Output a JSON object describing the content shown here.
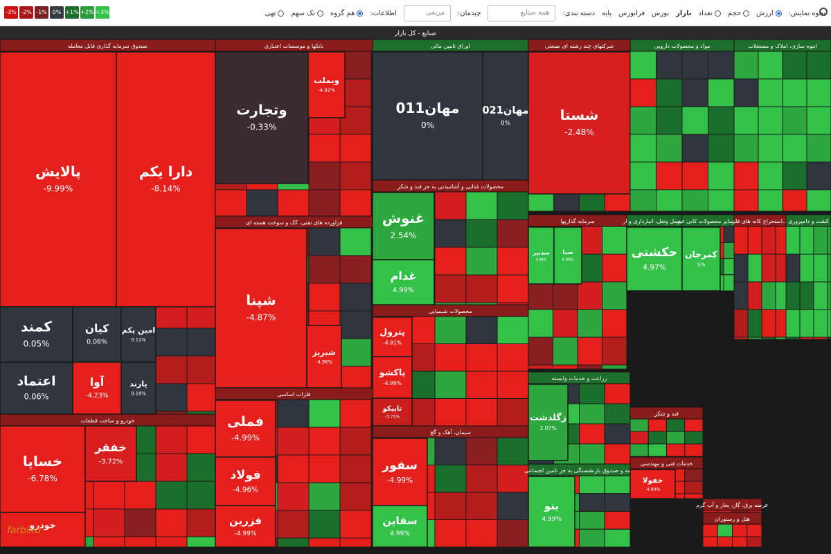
{
  "toolbar": {
    "legend": [
      {
        "label": "-3%",
        "color": "#d01010"
      },
      {
        "label": "-2%",
        "color": "#a81818"
      },
      {
        "label": "-1%",
        "color": "#7a2020"
      },
      {
        "label": "0%",
        "color": "#333a40"
      },
      {
        "label": "+1%",
        "color": "#1c6e2c"
      },
      {
        "label": "+2%",
        "color": "#2a9a3a"
      },
      {
        "label": "+3%",
        "color": "#33c14a"
      }
    ],
    "display_label": "نحوه نمایش:",
    "display_options": [
      "ارزش",
      "حجم",
      "تعداد"
    ],
    "markets": [
      "بازار",
      "بورس",
      "فرابورس",
      "پایه"
    ],
    "category_label": "دسته بندی:",
    "category_value": "همه صنایع",
    "layout_label": "چیدمان:",
    "layout_value": "مربعی",
    "info_label": "اطلاعات:",
    "info_options": [
      "هم گروه",
      "تک سهم",
      "تهی"
    ]
  },
  "title": "صنایع - کل بازار",
  "watermark": "farbixo",
  "sectors": [
    {
      "title": "صندوق سرمایه گذاری قابل معامله",
      "header_color": "#8a1c1c",
      "tiles": [
        {
          "name": "پالایش",
          "change": "-9.99%",
          "color": "#e5201c"
        },
        {
          "name": "دارا یکم",
          "change": "-8.14%",
          "color": "#e5201c"
        },
        {
          "name": "کمند",
          "change": "0.05%",
          "color": "#2f363d"
        },
        {
          "name": "کیان",
          "change": "0.06%",
          "color": "#2f363d"
        },
        {
          "name": "امین یکم",
          "change": "0.11%",
          "color": "#2f363d"
        },
        {
          "name": "اعتماد",
          "change": "0.06%",
          "color": "#2f363d"
        },
        {
          "name": "آوا",
          "change": "-4.23%",
          "color": "#e5201c"
        },
        {
          "name": "یارند",
          "change": "0.16%",
          "color": "#2f363d"
        }
      ]
    },
    {
      "title": "خودرو و ساخت قطعات",
      "header_color": "#8a1c1c",
      "tiles": [
        {
          "name": "خساپا",
          "change": "-6.78%",
          "color": "#e5201c"
        },
        {
          "name": "خفقر",
          "change": "-3.72%",
          "color": "#d81f1f"
        },
        {
          "name": "خودرو",
          "change": "",
          "color": "#e5201c"
        }
      ]
    },
    {
      "title": "بانکها و موسسات اعتباری",
      "header_color": "#8a1c1c",
      "tiles": [
        {
          "name": "وتجارت",
          "change": "-0.33%",
          "color": "#3a2c30"
        },
        {
          "name": "وبملت",
          "change": "-4.92%",
          "color": "#e5201c"
        }
      ]
    },
    {
      "title": "فراورده های نفتی، کک و سوخت هسته ای",
      "header_color": "#8a1c1c",
      "tiles": [
        {
          "name": "شپنا",
          "change": "-4.87%",
          "color": "#e5201c"
        },
        {
          "name": "شبریز",
          "change": "-4.96%",
          "color": "#e5201c"
        }
      ]
    },
    {
      "title": "فلزات اساسی",
      "header_color": "#8a1c1c",
      "tiles": [
        {
          "name": "فملی",
          "change": "-4.99%",
          "color": "#e5201c"
        },
        {
          "name": "فولاد",
          "change": "-4.96%",
          "color": "#e5201c"
        },
        {
          "name": "فزرین",
          "change": "-4.99%",
          "color": "#e5201c"
        }
      ]
    },
    {
      "title": "اوراق تامین مالی",
      "header_color": "#1e6e2c",
      "tiles": [
        {
          "name": "مهان011",
          "change": "0%",
          "color": "#2f363d"
        },
        {
          "name": "مهان021",
          "change": "0%",
          "color": "#2f363d"
        }
      ]
    },
    {
      "title": "محصولات غذایی و آشامیدنی به جز قند و شکر",
      "header_color": "#8a1c1c",
      "tiles": [
        {
          "name": "غنوش",
          "change": "2.54%",
          "color": "#2ea83e"
        },
        {
          "name": "غدام",
          "change": "4.99%",
          "color": "#33c14a"
        }
      ]
    },
    {
      "title": "محصولات شیمیایی",
      "header_color": "#8a1c1c",
      "tiles": [
        {
          "name": "پترول",
          "change": "-4.91%",
          "color": "#e5201c"
        },
        {
          "name": "پاکشو",
          "change": "-4.99%",
          "color": "#e5201c"
        },
        {
          "name": "تاپیکو",
          "change": "-3.71%",
          "color": "#c81e1e"
        }
      ]
    },
    {
      "title": "سیمان، آهک و گچ",
      "header_color": "#8a1c1c",
      "tiles": [
        {
          "name": "سفور",
          "change": "-4.99%",
          "color": "#e5201c"
        },
        {
          "name": "سفاین",
          "change": "4.99%",
          "color": "#33c14a"
        }
      ]
    },
    {
      "title": "شرکتهای چند رشته ای صنعتی",
      "header_color": "#8a1c1c",
      "tiles": [
        {
          "name": "شستا",
          "change": "-2.48%",
          "color": "#d81f1f"
        }
      ]
    },
    {
      "title": "مواد و محصولات دارویی",
      "header_color": "#1e6e2c",
      "tiles": []
    },
    {
      "title": "انبوه سازی، املاک و مستغلات",
      "header_color": "#1e6e2c",
      "tiles": []
    },
    {
      "title": "سرمایه گذاریها",
      "header_color": "#8a1c1c",
      "tiles": [
        {
          "name": "سدبیر",
          "change": "4.99%",
          "color": "#33c14a"
        },
        {
          "name": "صبا",
          "change": "4.99%",
          "color": "#33c14a"
        }
      ]
    },
    {
      "title": "حمل ونقل، انبارداری و ار...",
      "header_color": "#1e6e2c",
      "tiles": [
        {
          "name": "حکشتی",
          "change": "4.97%",
          "color": "#33c14a"
        }
      ]
    },
    {
      "title": "سایر محصولات کانی غیر...",
      "header_color": "#1e6e2c",
      "tiles": [
        {
          "name": "کمرجان",
          "change": "5%",
          "color": "#33c14a"
        }
      ]
    },
    {
      "title": "استخراج کانه های فلز...",
      "header_color": "#8a1c1c",
      "tiles": []
    },
    {
      "title": "کشت و دامپروری",
      "header_color": "#1e6e2c",
      "tiles": []
    },
    {
      "title": "زراعت و خدمات وابسته",
      "header_color": "#1e6e2c",
      "tiles": [
        {
          "name": "زگلدشت",
          "change": "2.07%",
          "color": "#2ea83e"
        }
      ]
    },
    {
      "title": "بیمه و صندوق بازنشستگی به جز تامین اجتماعی",
      "header_color": "#1e6e2c",
      "tiles": [
        {
          "name": "بنو",
          "change": "4.99%",
          "color": "#33c14a"
        }
      ]
    },
    {
      "title": "قند و شکر",
      "header_color": "#8a1c1c",
      "tiles": []
    },
    {
      "title": "خدمات فنی و مهندسی",
      "header_color": "#8a1c1c",
      "tiles": [
        {
          "name": "خفولا",
          "change": "-4.99%",
          "color": "#e5201c"
        }
      ]
    },
    {
      "title": "عرضه برق، گاز، بخار و آب گرم",
      "header_color": "#8a1c1c",
      "tiles": []
    },
    {
      "title": "هتل و رستوران",
      "header_color": "#8a1c1c",
      "tiles": []
    }
  ]
}
